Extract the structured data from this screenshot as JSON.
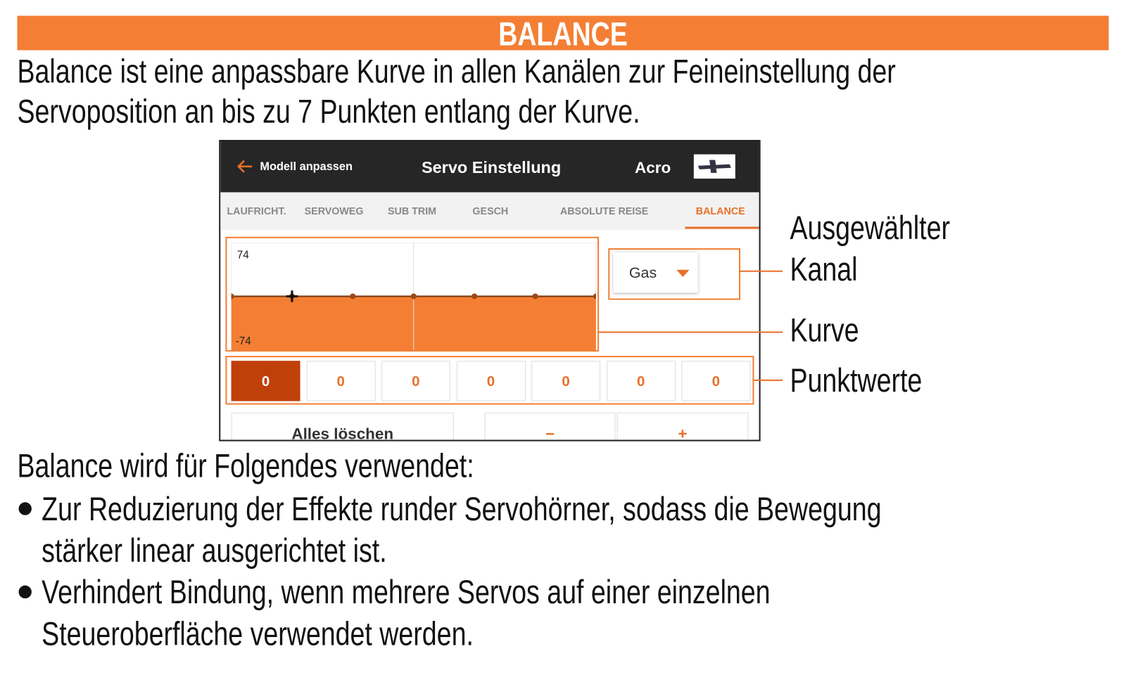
{
  "header": {
    "title": "BALANCE"
  },
  "intro": [
    "Balance ist eine anpassbare Kurve in allen Kanälen zur Feineinstellung der",
    "Servoposition an bis zu 7 Punkten entlang der Kurve."
  ],
  "screen": {
    "nav": {
      "back": "Modell anpassen",
      "title": "Servo Einstellung",
      "model": "Acro"
    },
    "tabs": [
      "LAUFRICHT.",
      "SERVOWEG",
      "SUB TRIM",
      "GESCH",
      "ABSOLUTE REISE",
      "BALANCE"
    ],
    "curve": {
      "max": 74,
      "min": -74
    },
    "channel": "Gas",
    "points": [
      0,
      0,
      0,
      0,
      0,
      0,
      0
    ],
    "buttons": {
      "clear": "Alles löschen",
      "minus": "−",
      "plus": "+"
    }
  },
  "callouts": {
    "channel": [
      "Ausgewählter",
      "Kanal"
    ],
    "curve": "Kurve",
    "points": "Punktwerte"
  },
  "usage": {
    "lead": "Balance wird für Folgendes verwendet:",
    "bullets": [
      [
        "Zur Reduzierung der Effekte runder Servohörner, sodass die Bewegung",
        "stärker linear ausgerichtet ist."
      ],
      [
        "Verhindert Bindung, wenn mehrere Servos auf einer einzelnen",
        "Steueroberfläche verwendet werden."
      ]
    ]
  }
}
